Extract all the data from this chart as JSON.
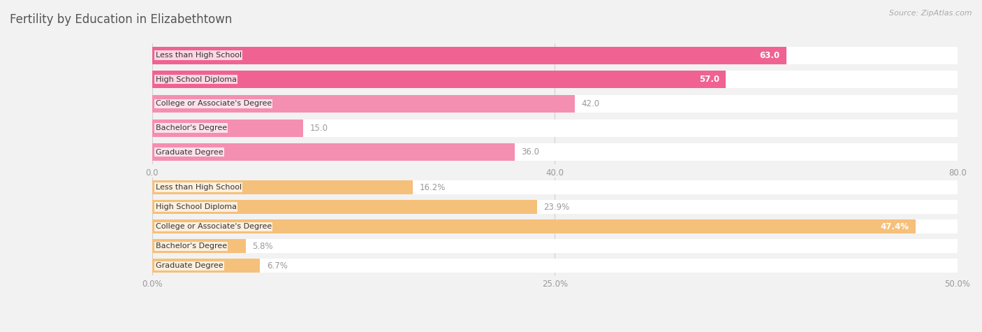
{
  "title": "Fertility by Education in Elizabethtown",
  "source": "Source: ZipAtlas.com",
  "top_section": {
    "categories": [
      "Less than High School",
      "High School Diploma",
      "College or Associate's Degree",
      "Bachelor's Degree",
      "Graduate Degree"
    ],
    "values": [
      63.0,
      57.0,
      42.0,
      15.0,
      36.0
    ],
    "value_labels": [
      "63.0",
      "57.0",
      "42.0",
      "15.0",
      "36.0"
    ],
    "xlim": [
      0,
      80
    ],
    "xticks": [
      0.0,
      40.0,
      80.0
    ],
    "xtick_labels": [
      "0.0",
      "40.0",
      "80.0"
    ],
    "bar_colors": [
      "#f06292",
      "#f06292",
      "#f48fb1",
      "#f48fb1",
      "#f48fb1"
    ],
    "value_label_inside": [
      true,
      true,
      false,
      false,
      false
    ],
    "value_label_color_inside": "#ffffff",
    "value_label_color_outside": "#999999"
  },
  "bottom_section": {
    "categories": [
      "Less than High School",
      "High School Diploma",
      "College or Associate's Degree",
      "Bachelor's Degree",
      "Graduate Degree"
    ],
    "values": [
      16.2,
      23.9,
      47.4,
      5.8,
      6.7
    ],
    "value_labels": [
      "16.2%",
      "23.9%",
      "47.4%",
      "5.8%",
      "6.7%"
    ],
    "xlim": [
      0,
      50
    ],
    "xticks": [
      0.0,
      25.0,
      50.0
    ],
    "xtick_labels": [
      "0.0%",
      "25.0%",
      "50.0%"
    ],
    "bar_colors": [
      "#f5c07a",
      "#f5c07a",
      "#f5c07a",
      "#f5c07a",
      "#f5c07a"
    ],
    "value_label_inside": [
      false,
      false,
      true,
      false,
      false
    ],
    "value_label_color_inside": "#ffffff",
    "value_label_color_outside": "#999999"
  },
  "bg_color": "#f2f2f2",
  "bar_bg_color": "#ffffff",
  "bar_height": 0.72,
  "label_fontsize": 8.0,
  "value_fontsize": 8.5,
  "title_fontsize": 12,
  "source_fontsize": 8.0,
  "axis_tick_fontsize": 8.5
}
